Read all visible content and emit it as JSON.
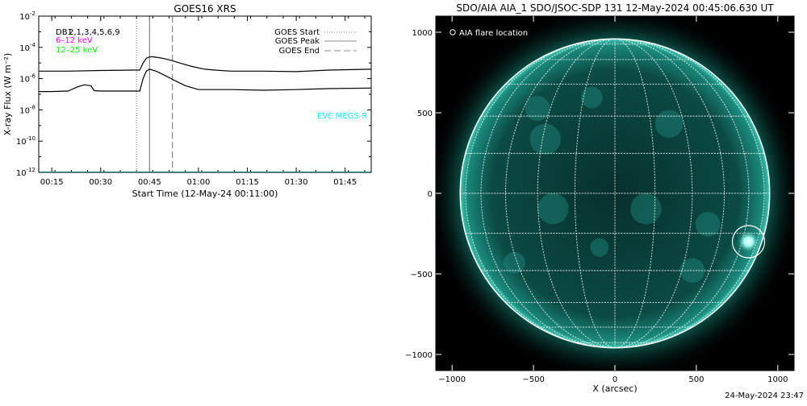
{
  "footer_timestamp": "24-May-2024 23:47",
  "chart_data": [
    {
      "type": "line",
      "title": "GOES16 XRS",
      "xlabel": "Start Time (12-May-24 00:11:00)",
      "ylabel": "X-ray Flux (W m⁻²)",
      "ylog": true,
      "ylim": [
        1e-12,
        0.01
      ],
      "xlim": [
        "00:11",
        "01:53"
      ],
      "x_ticks": [
        "00:15",
        "00:30",
        "00:45",
        "01:00",
        "01:15",
        "01:30",
        "01:45"
      ],
      "y_ticks": [
        {
          "base": "10",
          "exp": "-2",
          "value": 0.01
        },
        {
          "base": "10",
          "exp": "-4",
          "value": 0.0001
        },
        {
          "base": "10",
          "exp": "-6",
          "value": 1e-06
        },
        {
          "base": "10",
          "exp": "-8",
          "value": 1e-08
        },
        {
          "base": "10",
          "exp": "-10",
          "value": 1e-10
        },
        {
          "base": "10",
          "exp": "-12",
          "value": 1e-12
        }
      ],
      "overlay_labels": [
        {
          "text": "DB1",
          "color": "#000000"
        },
        {
          "text": "2,1,3,4,5,6,9",
          "color": "#000000"
        }
      ],
      "legend_left": [
        {
          "text": "6–12 keV",
          "color": "#ff00ff"
        },
        {
          "text": "12–25 keV",
          "color": "#00ff00"
        }
      ],
      "side_label": {
        "text": "EVE MEGS-R",
        "color": "#00ffff"
      },
      "markers": [
        {
          "name": "GOES Start",
          "time": "00:41",
          "style": "dotted",
          "color": "#888888"
        },
        {
          "name": "GOES Peak",
          "time": "00:45",
          "style": "solid",
          "color": "#888888"
        },
        {
          "name": "GOES End",
          "time": "00:52",
          "style": "dashed",
          "color": "#888888"
        }
      ],
      "series": [
        {
          "name": "",
          "color": "#000000",
          "x": [
            "00:11",
            "00:20",
            "00:30",
            "00:40",
            "00:42",
            "00:43",
            "00:44",
            "00:45",
            "00:46",
            "00:48",
            "00:50",
            "00:52",
            "00:55",
            "00:58",
            "01:02",
            "01:05",
            "01:10",
            "01:20",
            "01:30",
            "01:40",
            "01:53"
          ],
          "y": [
            3e-06,
            3e-06,
            3.3e-06,
            3.5e-06,
            3.5e-06,
            1e-05,
            2e-05,
            2.5e-05,
            2.5e-05,
            2.2e-05,
            1.8e-05,
            1.4e-05,
            9e-06,
            6e-06,
            4e-06,
            3.5e-06,
            3e-06,
            3e-06,
            2.8e-06,
            3.5e-06,
            4e-06
          ]
        },
        {
          "name": "",
          "color": "#000000",
          "x": [
            "00:11",
            "00:15",
            "00:20",
            "00:23",
            "00:25",
            "00:27",
            "00:28",
            "00:30",
            "00:40",
            "00:42",
            "00:43",
            "00:44",
            "00:45",
            "00:47",
            "00:50",
            "00:53",
            "00:56",
            "01:00",
            "01:10",
            "01:20",
            "01:30",
            "01:40",
            "01:53"
          ],
          "y": [
            1.5e-07,
            1.5e-07,
            1.6e-07,
            3e-07,
            4e-07,
            3.5e-07,
            1.7e-07,
            1.6e-07,
            1.6e-07,
            1.6e-07,
            1e-06,
            3e-06,
            4e-06,
            3e-06,
            1.5e-06,
            7e-07,
            3.5e-07,
            2e-07,
            2e-07,
            1.8e-07,
            2e-07,
            2.3e-07,
            2.5e-07
          ]
        },
        {
          "name": "",
          "color": "#00ffff",
          "x": [
            "00:11",
            "01:53"
          ],
          "y": [
            1e-12,
            1e-12
          ]
        }
      ],
      "legend": {
        "placement": "top-right",
        "entries": [
          {
            "label": "GOES Start",
            "style": "dotted"
          },
          {
            "label": "GOES Peak",
            "style": "solid"
          },
          {
            "label": "GOES End",
            "style": "dashed"
          }
        ]
      }
    },
    {
      "type": "image",
      "title": "SDO/AIA AIA_1 SDO/JSOC-SDP 131 12-May-2024 00:45:06.630 UT",
      "xlabel": "X (arcsec)",
      "ylabel": "",
      "xlim": [
        -1100,
        1100
      ],
      "ylim": [
        -1100,
        1100
      ],
      "x_ticks": [
        "−1000",
        "−500",
        "0",
        "500",
        "1000"
      ],
      "y_ticks": [
        "1000",
        "500",
        "0",
        "−500",
        "−1000"
      ],
      "x_tick_values": [
        -1000,
        -500,
        0,
        500,
        1000
      ],
      "y_tick_values": [
        1000,
        500,
        0,
        -500,
        -1000
      ],
      "legend": {
        "symbol": "circle",
        "label": "AIA flare location",
        "placement": "top-left"
      },
      "flare_location": {
        "x": 820,
        "y": -300
      },
      "solar_radius_arcsec": 950,
      "grid": true,
      "colors": {
        "background": "#000000",
        "disk": "#0b4a44",
        "bright": "#9ffff0",
        "grid": "#ffffff"
      }
    }
  ]
}
